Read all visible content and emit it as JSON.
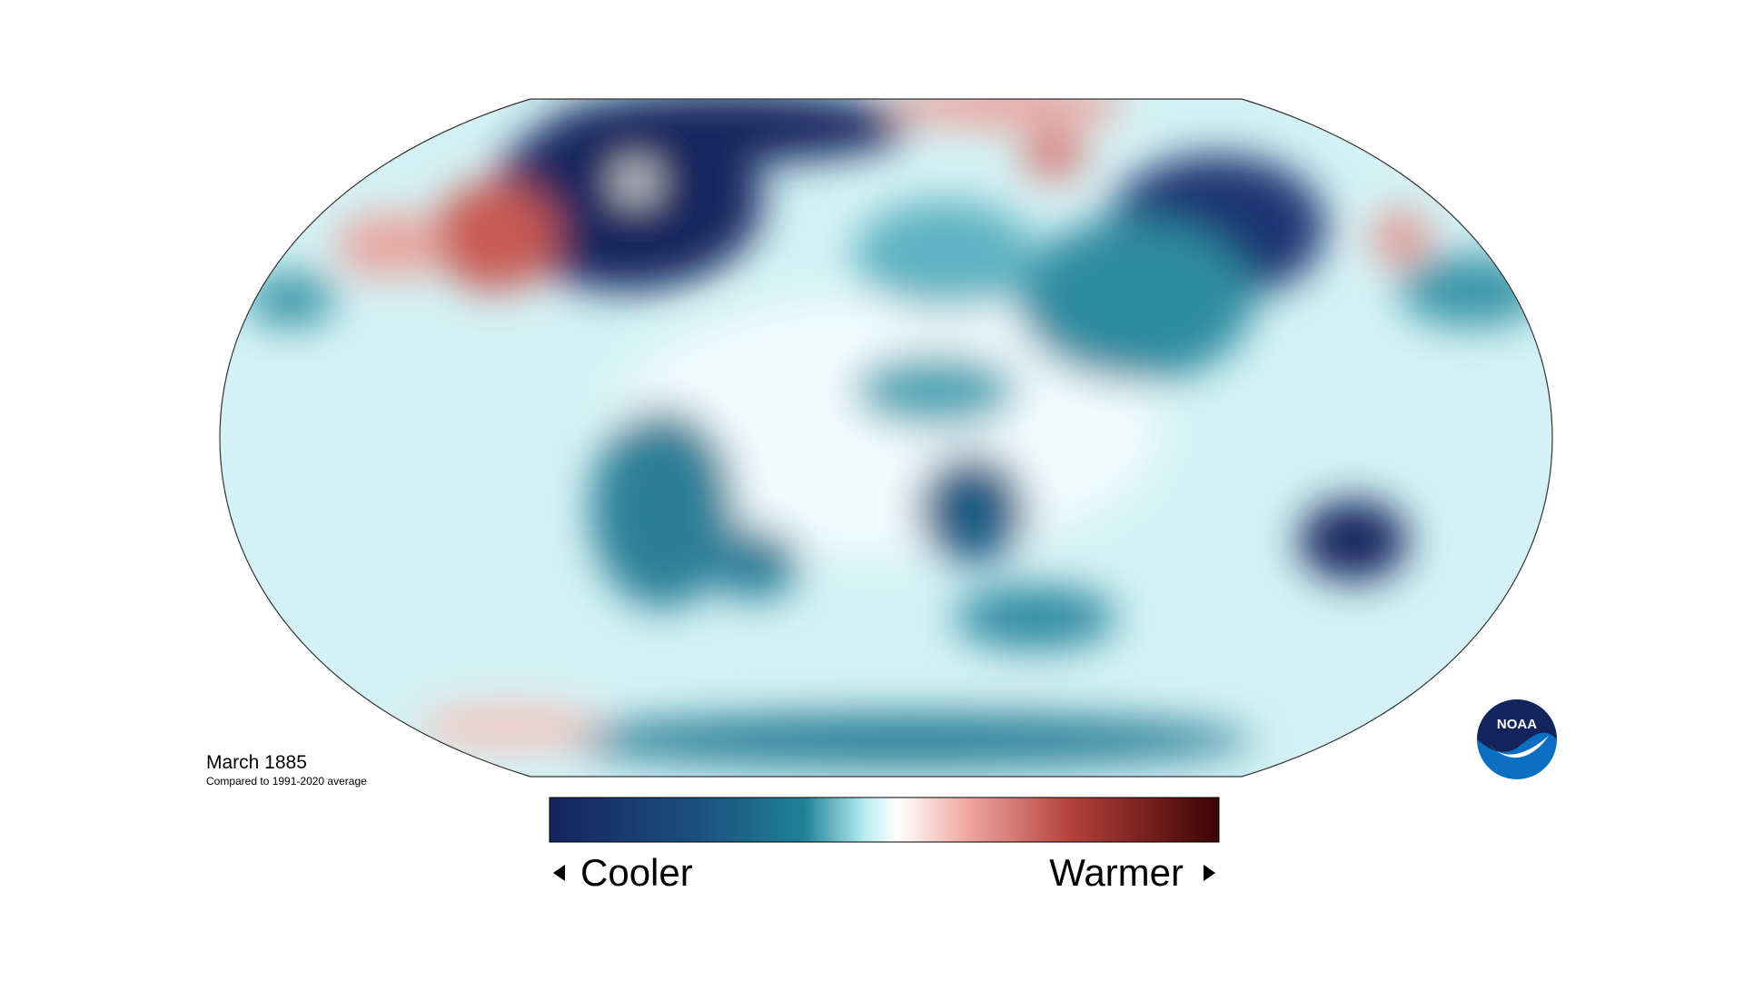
{
  "map": {
    "title": "March 1885",
    "subtitle": "Compared to 1991-2020 average"
  },
  "legend": {
    "low": "Cooler",
    "high": "Warmer"
  },
  "logo": {
    "text": "NOAA"
  }
}
